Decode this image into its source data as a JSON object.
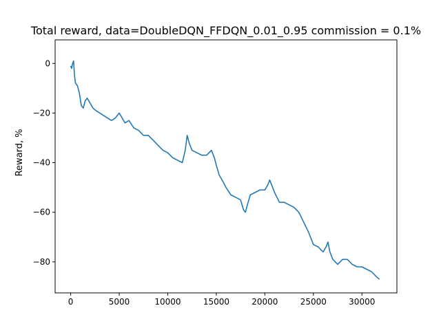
{
  "chart_data": {
    "type": "line",
    "title": "Total reward, data=DoubleDQN_FFDQN_0.01_0.95 commission = 0.1%",
    "xlabel": "",
    "ylabel": "Reward, %",
    "xlim": [
      -1600,
      33600
    ],
    "ylim": [
      -92.5,
      9.5
    ],
    "x_ticks": [
      0,
      5000,
      10000,
      15000,
      20000,
      25000,
      30000
    ],
    "y_ticks": [
      0,
      -20,
      -40,
      -60,
      -80
    ],
    "grid": false,
    "legend": "none",
    "line_color": "#1f77b4",
    "series": [
      {
        "x": [
          0,
          100,
          200,
          300,
          400,
          500,
          700,
          900,
          1100,
          1300,
          1500,
          1700,
          2000,
          2300,
          2600,
          3000,
          3400,
          3800,
          4200,
          4600,
          5000,
          5300,
          5600,
          6000,
          6500,
          7000,
          7500,
          8000,
          8500,
          9000,
          9500,
          10000,
          10500,
          11000,
          11500,
          11800,
          12000,
          12200,
          12500,
          13000,
          13500,
          14000,
          14500,
          14800,
          15000,
          15300,
          15600,
          16000,
          16500,
          17000,
          17500,
          17800,
          18000,
          18200,
          18500,
          19000,
          19500,
          20000,
          20300,
          20500,
          20700,
          21000,
          21500,
          22000,
          22500,
          23000,
          23500,
          24000,
          24500,
          25000,
          25500,
          26000,
          26300,
          26500,
          26700,
          27000,
          27500,
          28000,
          28500,
          29000,
          29500,
          30000,
          30500,
          31000,
          31500,
          31800
        ],
        "y": [
          -1,
          -2,
          0,
          1,
          -5,
          -8,
          -9,
          -12,
          -17,
          -18,
          -15,
          -14,
          -16,
          -18,
          -19,
          -20,
          -21,
          -22,
          -23,
          -22,
          -20,
          -22,
          -24,
          -23,
          -26,
          -27,
          -29,
          -29,
          -31,
          -33,
          -35,
          -36,
          -38,
          -39,
          -40,
          -35,
          -29,
          -32,
          -35,
          -36,
          -37,
          -37,
          -35,
          -38,
          -41,
          -45,
          -47,
          -50,
          -53,
          -54,
          -55,
          -59,
          -60,
          -57,
          -53,
          -52,
          -51,
          -51,
          -49,
          -47,
          -49,
          -52,
          -56,
          -56,
          -57,
          -58,
          -60,
          -64,
          -68,
          -73,
          -74,
          -76,
          -74,
          -72,
          -76,
          -79,
          -81,
          -79,
          -79,
          -81,
          -82,
          -82,
          -83,
          -84,
          -86,
          -87
        ]
      }
    ]
  }
}
